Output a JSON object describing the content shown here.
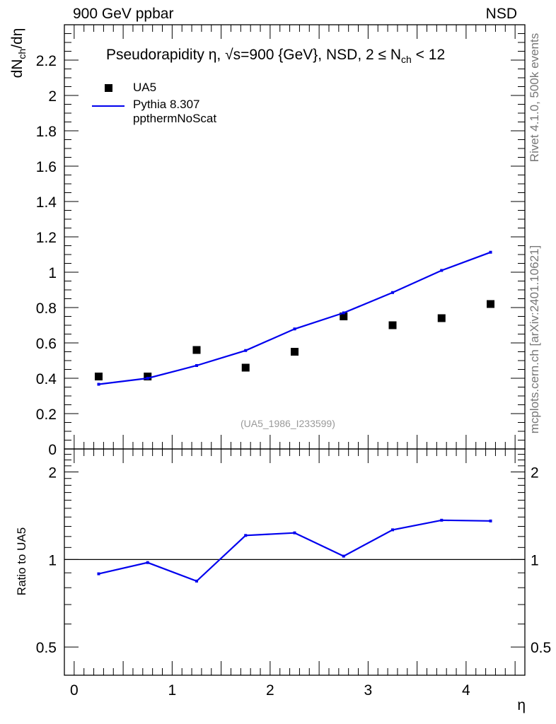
{
  "header": {
    "left_label": "900 GeV ppbar",
    "right_label": "NSD"
  },
  "title": {
    "prefix": "Pseudorapidity η, √s=900 {GeV}, NSD, 2 ≤ N",
    "sub": "ch",
    "suffix": " < 12"
  },
  "side_text": {
    "rivet": "Rivet 4.1.0,  500k events",
    "mcplots": "mcplots.cern.ch [arXiv:2401.10621]"
  },
  "reference_id": "(UA5_1986_I233599)",
  "chart_data": [
    {
      "type": "scatter",
      "panel": "main",
      "xlabel": "η",
      "ylabel": {
        "prefix": "dN",
        "sub": "ch",
        "suffix": "/dη"
      },
      "xlim": [
        -0.1,
        4.6
      ],
      "ylim": [
        0,
        2.4
      ],
      "x_ticks": [
        "0",
        "1",
        "2",
        "3",
        "4"
      ],
      "y_ticks": [
        "0",
        "0.2",
        "0.4",
        "0.6",
        "0.8",
        "1",
        "1.2",
        "1.4",
        "1.6",
        "1.8",
        "2",
        "2.2"
      ],
      "series": [
        {
          "name": "UA5",
          "style": "markers",
          "color": "#000000",
          "x": [
            0.25,
            0.75,
            1.25,
            1.75,
            2.25,
            2.75,
            3.25,
            3.75,
            4.25
          ],
          "values": [
            0.41,
            0.41,
            0.56,
            0.46,
            0.55,
            0.75,
            0.7,
            0.74,
            0.82
          ]
        },
        {
          "name": "Pythia 8.307 ppthermNoScat",
          "style": "line",
          "color": "#0000ee",
          "x": [
            0.25,
            0.75,
            1.25,
            1.75,
            2.25,
            2.75,
            3.25,
            3.75,
            4.25
          ],
          "values": [
            0.366,
            0.4,
            0.472,
            0.557,
            0.679,
            0.77,
            0.885,
            1.01,
            1.113
          ]
        }
      ]
    },
    {
      "type": "line",
      "panel": "ratio",
      "ylabel": "Ratio to UA5",
      "xlim": [
        -0.1,
        4.6
      ],
      "ylim": [
        0.4,
        2.4
      ],
      "y_scale": "log",
      "y_ticks_left": [
        "0.5",
        "1",
        "2"
      ],
      "y_ticks_right": [
        "0.5",
        "1",
        "2"
      ],
      "reference_line": 1,
      "series": [
        {
          "name": "Pythia 8.307 ppthermNoScat / UA5",
          "color": "#0000ee",
          "x": [
            0.25,
            0.75,
            1.25,
            1.75,
            2.25,
            2.75,
            3.25,
            3.75,
            4.25
          ],
          "values": [
            0.893,
            0.976,
            0.843,
            1.21,
            1.235,
            1.027,
            1.265,
            1.365,
            1.357
          ]
        }
      ]
    }
  ]
}
